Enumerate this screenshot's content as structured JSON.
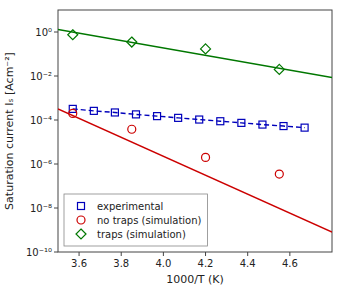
{
  "chart_data": {
    "type": "line",
    "xlabel": "1000/T (K)",
    "ylabel": "Saturation current Iₛ [Acm⁻²]",
    "log": "y",
    "grid": false,
    "legend": "lower left",
    "xlim": [
      3.5,
      4.8
    ],
    "ylim": [
      1e-10,
      10.0
    ],
    "xticks": [
      3.6,
      3.8,
      {
        "value": 4.0,
        "label": "4.0"
      },
      4.2,
      4.4,
      4.6
    ],
    "yticks": [
      {
        "value": 1e-10,
        "label": "10⁻¹⁰"
      },
      {
        "value": 1e-08,
        "label": "10⁻⁸"
      },
      {
        "value": 1e-06,
        "label": "10⁻⁶"
      },
      {
        "value": 0.0001,
        "label": "10⁻⁴"
      },
      {
        "value": 0.01,
        "label": "10⁻²"
      },
      {
        "value": 1.0,
        "label": "10⁰"
      }
    ],
    "series": [
      {
        "type": "line",
        "line_style": "solid",
        "color": "#cc0000",
        "x": [
          3.5,
          4.8
        ],
        "values": [
          0.00032,
          8e-10
        ]
      },
      {
        "type": "line",
        "line_style": "solid",
        "color": "#007700",
        "x": [
          3.5,
          4.8
        ],
        "values": [
          1.3,
          0.0085
        ]
      },
      {
        "name": "experimental",
        "type": "line",
        "line_style": "dashed",
        "marker": "square",
        "color": "#0000bb",
        "x": [
          3.57,
          3.67,
          3.77,
          3.87,
          3.97,
          4.07,
          4.17,
          4.27,
          4.37,
          4.47,
          4.57,
          4.67
        ],
        "values": [
          0.00032,
          0.00026,
          0.00022,
          0.00018,
          0.00015,
          0.000125,
          0.000105,
          8.8e-05,
          7.4e-05,
          6.2e-05,
          5.3e-05,
          4.5e-05
        ]
      },
      {
        "name": "no traps (simulation)",
        "type": "scatter",
        "marker": "circle",
        "color": "#cc0000",
        "x": [
          3.57,
          3.85,
          4.2,
          4.55
        ],
        "values": [
          0.0002,
          3.8e-05,
          2e-06,
          3.5e-07
        ]
      },
      {
        "name": "traps (simulation)",
        "type": "scatter",
        "marker": "diamond",
        "color": "#007700",
        "x": [
          3.57,
          3.85,
          4.2,
          4.55
        ],
        "values": [
          0.75,
          0.35,
          0.17,
          0.02
        ]
      }
    ]
  }
}
